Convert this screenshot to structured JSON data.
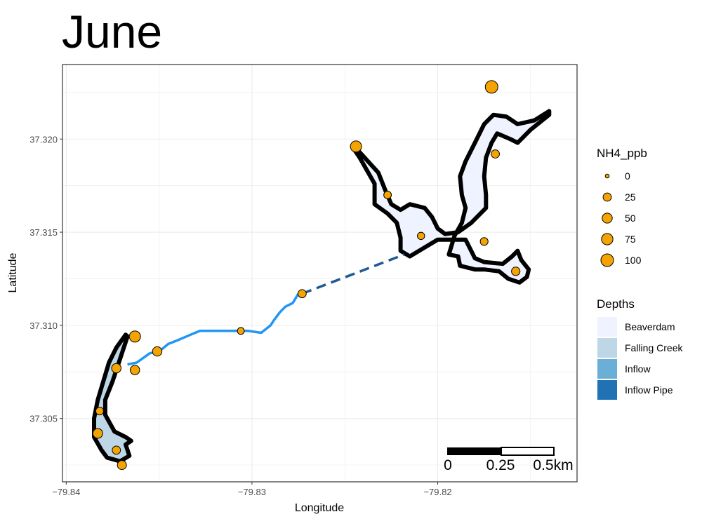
{
  "title": "June",
  "axes": {
    "xlabel": "Longitude",
    "ylabel": "Latitude",
    "xticks": [
      {
        "value": -79.84,
        "label": "−79.84"
      },
      {
        "value": -79.83,
        "label": "−79.83"
      },
      {
        "value": -79.82,
        "label": "−79.82"
      }
    ],
    "yticks": [
      {
        "value": 37.305,
        "label": "37.305"
      },
      {
        "value": 37.31,
        "label": "37.310"
      },
      {
        "value": 37.315,
        "label": "37.315"
      },
      {
        "value": 37.32,
        "label": "37.320"
      }
    ],
    "xlim": [
      -79.8402,
      -79.8125
    ],
    "ylim": [
      37.3016,
      37.324
    ],
    "grid": true
  },
  "legend_size": {
    "title": "NH4_ppb",
    "fill": "#F5A300",
    "entries": [
      {
        "label": "0",
        "value": 0
      },
      {
        "label": "25",
        "value": 25
      },
      {
        "label": "50",
        "value": 50
      },
      {
        "label": "75",
        "value": 75
      },
      {
        "label": "100",
        "value": 100
      }
    ]
  },
  "legend_fill": {
    "title": "Depths",
    "entries": [
      {
        "label": "Beaverdam",
        "color": "#EFF3FF"
      },
      {
        "label": "Falling Creek",
        "color": "#BDD7E7"
      },
      {
        "label": "Inflow",
        "color": "#6BAED6"
      },
      {
        "label": "Inflow Pipe",
        "color": "#2171B5"
      }
    ]
  },
  "scale_bar": {
    "labels": [
      "0",
      "0.25",
      "0.5km"
    ]
  },
  "colors": {
    "stream": "#2196F3",
    "pipe": "#1F5A96",
    "outline": "#000000",
    "point_fill": "#F5A300",
    "beaverdam_fill": "#EFF3FF",
    "falling_creek_fill": "#BDD7E7"
  },
  "map_data": {
    "beaverdam_outline": [
      [
        -79.8215,
        37.3137
      ],
      [
        -79.82,
        37.3146
      ],
      [
        -79.8185,
        37.3146
      ],
      [
        -79.818,
        37.3136
      ],
      [
        -79.8175,
        37.3134
      ],
      [
        -79.8165,
        37.3133
      ],
      [
        -79.816,
        37.3137
      ],
      [
        -79.8157,
        37.314
      ],
      [
        -79.8155,
        37.3135
      ],
      [
        -79.8151,
        37.313
      ],
      [
        -79.8152,
        37.3126
      ],
      [
        -79.8156,
        37.3123
      ],
      [
        -79.8162,
        37.3125
      ],
      [
        -79.8167,
        37.3129
      ],
      [
        -79.8175,
        37.313
      ],
      [
        -79.818,
        37.313
      ],
      [
        -79.8188,
        37.3132
      ],
      [
        -79.8189,
        37.3137
      ],
      [
        -79.8194,
        37.3138
      ],
      [
        -79.8191,
        37.3148
      ],
      [
        -79.8187,
        37.3155
      ],
      [
        -79.8185,
        37.3163
      ],
      [
        -79.8187,
        37.317
      ],
      [
        -79.8188,
        37.318
      ],
      [
        -79.8185,
        37.3188
      ],
      [
        -79.818,
        37.3198
      ],
      [
        -79.8175,
        37.3208
      ],
      [
        -79.817,
        37.3213
      ],
      [
        -79.8163,
        37.3212
      ],
      [
        -79.8157,
        37.3208
      ],
      [
        -79.8148,
        37.321
      ],
      [
        -79.814,
        37.3215
      ],
      [
        -79.814,
        37.3213
      ],
      [
        -79.815,
        37.3205
      ],
      [
        -79.8157,
        37.3198
      ],
      [
        -79.8161,
        37.32
      ],
      [
        -79.8168,
        37.3203
      ],
      [
        -79.8171,
        37.3198
      ],
      [
        -79.8174,
        37.319
      ],
      [
        -79.8175,
        37.318
      ],
      [
        -79.8174,
        37.317
      ],
      [
        -79.8174,
        37.3163
      ],
      [
        -79.8182,
        37.3155
      ],
      [
        -79.8189,
        37.315
      ],
      [
        -79.8196,
        37.3149
      ],
      [
        -79.82,
        37.3152
      ],
      [
        -79.8203,
        37.3158
      ],
      [
        -79.8207,
        37.3163
      ],
      [
        -79.8215,
        37.3165
      ],
      [
        -79.822,
        37.3162
      ],
      [
        -79.8225,
        37.3165
      ],
      [
        -79.8228,
        37.3172
      ],
      [
        -79.8232,
        37.3182
      ],
      [
        -79.8243,
        37.3194
      ],
      [
        -79.8246,
        37.3196
      ],
      [
        -79.8242,
        37.319
      ],
      [
        -79.8234,
        37.3176
      ],
      [
        -79.8234,
        37.3165
      ],
      [
        -79.8227,
        37.316
      ],
      [
        -79.8222,
        37.3155
      ],
      [
        -79.822,
        37.3147
      ],
      [
        -79.822,
        37.314
      ]
    ],
    "falling_creek_outline": [
      [
        -79.8367,
        37.3094
      ],
      [
        -79.837,
        37.3085
      ],
      [
        -79.8375,
        37.307
      ],
      [
        -79.8379,
        37.306
      ],
      [
        -79.8379,
        37.3052
      ],
      [
        -79.8374,
        37.3043
      ],
      [
        -79.8368,
        37.304
      ],
      [
        -79.8365,
        37.3038
      ],
      [
        -79.8368,
        37.3036
      ],
      [
        -79.8366,
        37.303
      ],
      [
        -79.8371,
        37.3027
      ],
      [
        -79.8378,
        37.3029
      ],
      [
        -79.8381,
        37.3033
      ],
      [
        -79.8385,
        37.304
      ],
      [
        -79.8385,
        37.305
      ],
      [
        -79.8383,
        37.306
      ],
      [
        -79.838,
        37.307
      ],
      [
        -79.8377,
        37.308
      ],
      [
        -79.8373,
        37.3088
      ],
      [
        -79.8368,
        37.3095
      ]
    ],
    "stream": [
      [
        -79.8367,
        37.3079
      ],
      [
        -79.8362,
        37.308
      ],
      [
        -79.8355,
        37.3085
      ],
      [
        -79.835,
        37.3086
      ],
      [
        -79.8345,
        37.309
      ],
      [
        -79.834,
        37.3092
      ],
      [
        -79.8333,
        37.3095
      ],
      [
        -79.8328,
        37.3097
      ],
      [
        -79.832,
        37.3097
      ],
      [
        -79.831,
        37.3097
      ],
      [
        -79.8302,
        37.3097
      ],
      [
        -79.8295,
        37.3096
      ],
      [
        -79.829,
        37.31
      ],
      [
        -79.8288,
        37.3103
      ],
      [
        -79.8285,
        37.3107
      ],
      [
        -79.8282,
        37.311
      ],
      [
        -79.8278,
        37.3112
      ],
      [
        -79.8275,
        37.3117
      ]
    ],
    "pipe": [
      [
        -79.8273,
        37.3117
      ],
      [
        -79.8218,
        37.3138
      ]
    ],
    "samples": [
      {
        "lon": -79.8171,
        "lat": 37.3228,
        "nh4": 100
      },
      {
        "lon": -79.8244,
        "lat": 37.3196,
        "nh4": 70
      },
      {
        "lon": -79.8169,
        "lat": 37.3192,
        "nh4": 25
      },
      {
        "lon": -79.8227,
        "lat": 37.317,
        "nh4": 18
      },
      {
        "lon": -79.8209,
        "lat": 37.3148,
        "nh4": 15
      },
      {
        "lon": -79.8175,
        "lat": 37.3145,
        "nh4": 20
      },
      {
        "lon": -79.8158,
        "lat": 37.3129,
        "nh4": 28
      },
      {
        "lon": -79.8273,
        "lat": 37.3117,
        "nh4": 25
      },
      {
        "lon": -79.8306,
        "lat": 37.3097,
        "nh4": 12
      },
      {
        "lon": -79.8363,
        "lat": 37.3094,
        "nh4": 70
      },
      {
        "lon": -79.8351,
        "lat": 37.3086,
        "nh4": 40
      },
      {
        "lon": -79.8373,
        "lat": 37.3077,
        "nh4": 40
      },
      {
        "lon": -79.8363,
        "lat": 37.3076,
        "nh4": 40
      },
      {
        "lon": -79.8382,
        "lat": 37.3054,
        "nh4": 20
      },
      {
        "lon": -79.8383,
        "lat": 37.3042,
        "nh4": 45
      },
      {
        "lon": -79.8373,
        "lat": 37.3033,
        "nh4": 25
      },
      {
        "lon": -79.837,
        "lat": 37.3025,
        "nh4": 35
      }
    ]
  }
}
